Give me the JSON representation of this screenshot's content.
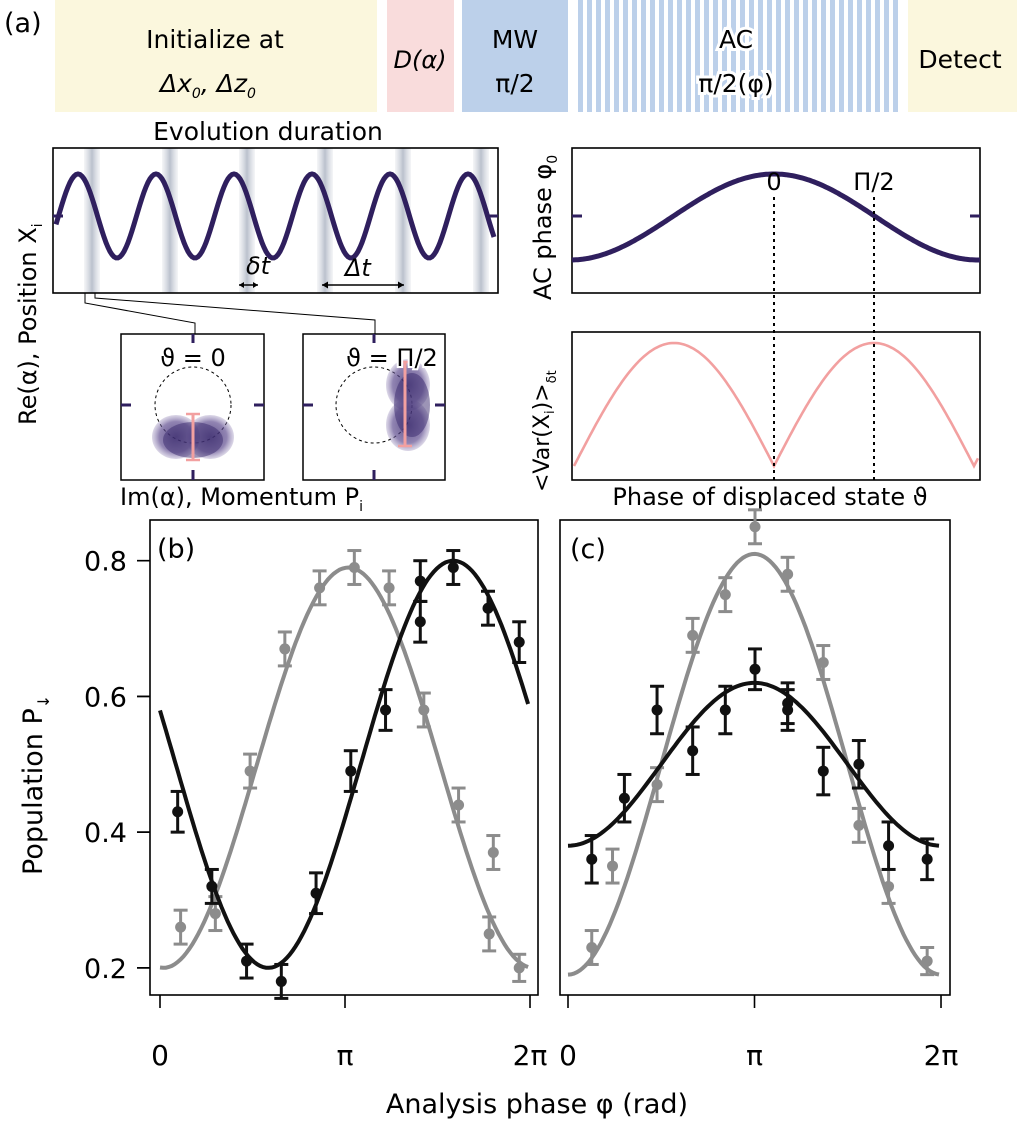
{
  "panel_labels": {
    "a": "(a)",
    "b": "(b)",
    "c": "(c)"
  },
  "sequence": {
    "init_line1": "Initialize at",
    "init_line2_dx": "Δx",
    "init_line2_sep": ",  Δz",
    "init_sub": "0",
    "displace": "D(α)",
    "mw_line1": "MW",
    "mw_line2": "π/2",
    "ac_line1": "AC",
    "ac_line2": "π/2(φ)",
    "detect": "Detect",
    "colors": {
      "initialize": "#fbf7dd",
      "displace": "#f9dcdc",
      "mw": "#bcd0ea",
      "ac_stripe": "#bcd0ea",
      "detect": "#fbf7dd"
    }
  },
  "evolution": {
    "title": "Evolution duration",
    "ylabel_main": "Re(α), Position X",
    "ylabel_sub": "i",
    "xlabel_main": "Im(α), Momentum P",
    "xlabel_sub": "i",
    "dt_small": "δt",
    "dt_large": "Δt",
    "inset_left": "ϑ = 0",
    "inset_right": "ϑ = Π/2",
    "trace_color": "#2f1f5e"
  },
  "phase_panel": {
    "ylabel_main": "AC phase φ",
    "ylabel_sub": "0",
    "mark_zero": "0",
    "mark_half": "Π/2",
    "curve_color": "#2f1f5e"
  },
  "var_panel": {
    "ylabel_main": "<Var(X",
    "ylabel_mid": "i",
    "ylabel_end": ")>",
    "ylabel_sub": "δt",
    "xlabel": "Phase of displaced state ϑ",
    "curve_color": "#f2a0a0"
  },
  "shared_axes": {
    "ylabel": "Population P",
    "ylabel_sub": "↓",
    "xlabel": "Analysis phase φ (rad)"
  },
  "chart_data": [
    {
      "panel": "(b)",
      "type": "scatter",
      "x_ticklabels": [
        "0",
        "π",
        "2π"
      ],
      "y_ticklabels": [
        "0.2",
        "0.4",
        "0.6",
        "0.8"
      ],
      "xlim": [
        0,
        6.283
      ],
      "ylim": [
        0.16,
        0.86
      ],
      "series": [
        {
          "color": "#8c8c8c",
          "points": [
            {
              "x": 0.35,
              "y": 0.26,
              "err": 0.025
            },
            {
              "x": 0.94,
              "y": 0.28,
              "err": 0.025
            },
            {
              "x": 1.53,
              "y": 0.49,
              "err": 0.025
            },
            {
              "x": 2.12,
              "y": 0.67,
              "err": 0.025
            },
            {
              "x": 2.71,
              "y": 0.76,
              "err": 0.025
            },
            {
              "x": 3.3,
              "y": 0.79,
              "err": 0.025
            },
            {
              "x": 3.89,
              "y": 0.76,
              "err": 0.025
            },
            {
              "x": 4.48,
              "y": 0.58,
              "err": 0.025
            },
            {
              "x": 5.07,
              "y": 0.44,
              "err": 0.025
            },
            {
              "x": 5.59,
              "y": 0.25,
              "err": 0.025
            },
            {
              "x": 5.66,
              "y": 0.37,
              "err": 0.025
            },
            {
              "x": 6.1,
              "y": 0.2,
              "err": 0.02
            }
          ],
          "fit": {
            "offset": 0.495,
            "amplitude": 0.295,
            "period": 6.283,
            "phase_max": 3.2
          }
        },
        {
          "color": "#111111",
          "points": [
            {
              "x": 0.3,
              "y": 0.43,
              "err": 0.03
            },
            {
              "x": 0.88,
              "y": 0.32,
              "err": 0.025
            },
            {
              "x": 1.47,
              "y": 0.21,
              "err": 0.025
            },
            {
              "x": 2.06,
              "y": 0.18,
              "err": 0.025
            },
            {
              "x": 2.65,
              "y": 0.31,
              "err": 0.03
            },
            {
              "x": 3.24,
              "y": 0.49,
              "err": 0.03
            },
            {
              "x": 3.83,
              "y": 0.58,
              "err": 0.03
            },
            {
              "x": 4.42,
              "y": 0.71,
              "err": 0.03
            },
            {
              "x": 4.42,
              "y": 0.77,
              "err": 0.03
            },
            {
              "x": 4.98,
              "y": 0.79,
              "err": 0.025
            },
            {
              "x": 5.57,
              "y": 0.73,
              "err": 0.025
            },
            {
              "x": 6.1,
              "y": 0.68,
              "err": 0.03
            }
          ],
          "fit": {
            "offset": 0.5,
            "amplitude": 0.3,
            "period": 6.283,
            "phase_max": 4.98
          }
        }
      ]
    },
    {
      "panel": "(c)",
      "type": "scatter",
      "x_ticklabels": [
        "0",
        "π",
        "2π"
      ],
      "y_ticklabels": [
        "0.2",
        "0.4",
        "0.6",
        "0.8"
      ],
      "xlim": [
        0,
        6.283
      ],
      "ylim": [
        0.16,
        0.86
      ],
      "series": [
        {
          "color": "#8c8c8c",
          "points": [
            {
              "x": 0.4,
              "y": 0.23,
              "err": 0.025
            },
            {
              "x": 0.75,
              "y": 0.35,
              "err": 0.025
            },
            {
              "x": 1.5,
              "y": 0.47,
              "err": 0.025
            },
            {
              "x": 2.1,
              "y": 0.69,
              "err": 0.025
            },
            {
              "x": 2.65,
              "y": 0.75,
              "err": 0.025
            },
            {
              "x": 3.15,
              "y": 0.85,
              "err": 0.025
            },
            {
              "x": 3.7,
              "y": 0.78,
              "err": 0.025
            },
            {
              "x": 4.3,
              "y": 0.65,
              "err": 0.025
            },
            {
              "x": 4.9,
              "y": 0.41,
              "err": 0.025
            },
            {
              "x": 5.4,
              "y": 0.32,
              "err": 0.025
            },
            {
              "x": 6.05,
              "y": 0.21,
              "err": 0.02
            }
          ],
          "fit": {
            "offset": 0.5,
            "amplitude": 0.31,
            "period": 6.283,
            "phase_max": 3.14
          }
        },
        {
          "color": "#111111",
          "points": [
            {
              "x": 0.4,
              "y": 0.36,
              "err": 0.035
            },
            {
              "x": 0.95,
              "y": 0.45,
              "err": 0.035
            },
            {
              "x": 1.5,
              "y": 0.58,
              "err": 0.035
            },
            {
              "x": 2.1,
              "y": 0.52,
              "err": 0.035
            },
            {
              "x": 2.65,
              "y": 0.58,
              "err": 0.035
            },
            {
              "x": 3.15,
              "y": 0.64,
              "err": 0.03
            },
            {
              "x": 3.7,
              "y": 0.59,
              "err": 0.03
            },
            {
              "x": 3.7,
              "y": 0.58,
              "err": 0.03
            },
            {
              "x": 4.3,
              "y": 0.49,
              "err": 0.035
            },
            {
              "x": 4.9,
              "y": 0.5,
              "err": 0.035
            },
            {
              "x": 5.4,
              "y": 0.38,
              "err": 0.035
            },
            {
              "x": 6.05,
              "y": 0.36,
              "err": 0.03
            }
          ],
          "fit": {
            "offset": 0.5,
            "amplitude": 0.12,
            "period": 6.283,
            "phase_max": 3.14
          }
        }
      ]
    }
  ]
}
